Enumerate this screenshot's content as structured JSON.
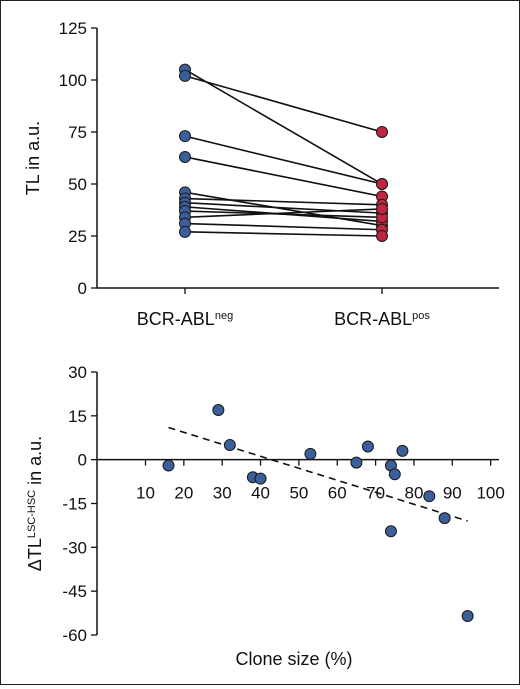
{
  "colors": {
    "neg_point": "#3a5f9a",
    "pos_point": "#c0263d",
    "scatter_point": "#3a5f9a",
    "line": "#111111"
  },
  "chart_data": [
    {
      "type": "line",
      "title": "",
      "ylabel": "TL in a.u.",
      "xlabel": "",
      "categories": [
        {
          "base": "BCR-ABL",
          "sup": "neg"
        },
        {
          "base": "BCR-ABL",
          "sup": "pos"
        }
      ],
      "ylim": [
        0,
        125
      ],
      "yticks": [
        0,
        25,
        50,
        75,
        100,
        125
      ],
      "grid": false,
      "pairs": [
        [
          105,
          50
        ],
        [
          102,
          75
        ],
        [
          73,
          50
        ],
        [
          63,
          44
        ],
        [
          46,
          30
        ],
        [
          43,
          40
        ],
        [
          41,
          36
        ],
        [
          39,
          32
        ],
        [
          37,
          34
        ],
        [
          34,
          38
        ],
        [
          31,
          28
        ],
        [
          27,
          25
        ]
      ]
    },
    {
      "type": "scatter",
      "title": "",
      "xlabel": "Clone size (%)",
      "ylabel": {
        "base": "ΔTL",
        "sup": "LSC-HSC",
        "suffix": " in a.u."
      },
      "xlim": [
        10,
        100
      ],
      "ylim": [
        -60,
        30
      ],
      "xticks": [
        10,
        20,
        30,
        40,
        50,
        60,
        70,
        80,
        90,
        100
      ],
      "yticks": [
        30,
        15,
        0,
        -15,
        -30,
        -45,
        -60
      ],
      "grid": false,
      "points": [
        {
          "x": 16,
          "y": -2
        },
        {
          "x": 29,
          "y": 17
        },
        {
          "x": 32,
          "y": 5
        },
        {
          "x": 38,
          "y": -6
        },
        {
          "x": 40,
          "y": -6.5
        },
        {
          "x": 53,
          "y": 2
        },
        {
          "x": 65,
          "y": -1
        },
        {
          "x": 68,
          "y": 4.5
        },
        {
          "x": 74,
          "y": -2
        },
        {
          "x": 75,
          "y": -5
        },
        {
          "x": 77,
          "y": 3
        },
        {
          "x": 74,
          "y": -24.5
        },
        {
          "x": 84,
          "y": -12.5
        },
        {
          "x": 88,
          "y": -20
        },
        {
          "x": 94,
          "y": -53.5
        }
      ],
      "trendline": {
        "style": "dashed",
        "from": {
          "x": 16,
          "y": 11
        },
        "to": {
          "x": 94,
          "y": -21
        }
      }
    }
  ]
}
